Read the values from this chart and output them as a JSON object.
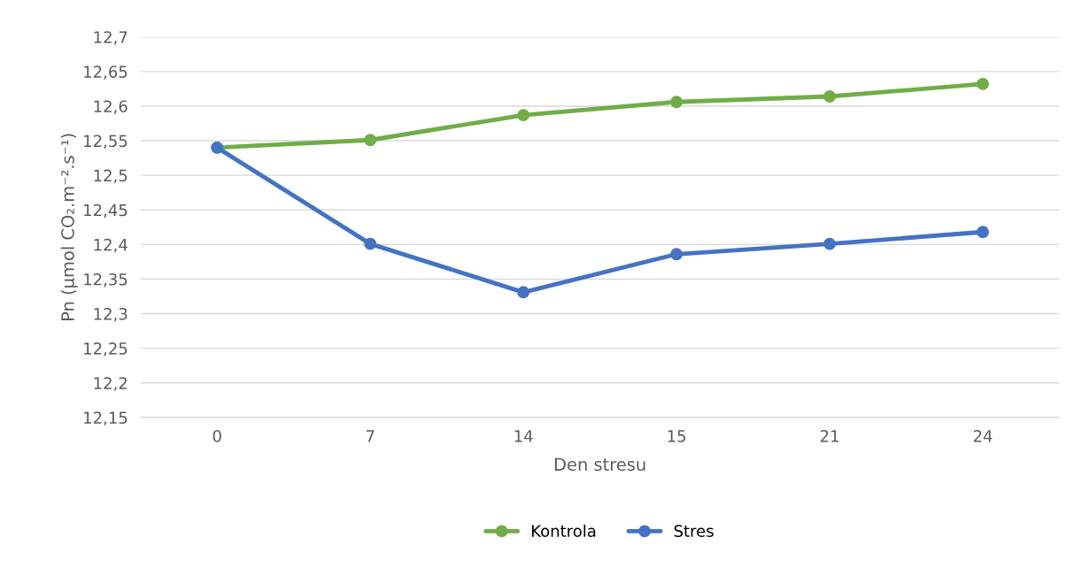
{
  "chart_data": {
    "type": "line",
    "xlabel": "Den stresu",
    "ylabel": "Pn (µmol CO₂.m⁻².s⁻¹)",
    "categories": [
      "0",
      "7",
      "14",
      "15",
      "21",
      "24"
    ],
    "series": [
      {
        "name": "Kontrola",
        "color": "#70ad47",
        "values": [
          12.54,
          12.551,
          12.587,
          12.606,
          12.614,
          12.632
        ]
      },
      {
        "name": "Stres",
        "color": "#4472c4",
        "values": [
          12.54,
          12.401,
          12.331,
          12.386,
          12.401,
          12.418
        ]
      }
    ],
    "ylim": [
      12.15,
      12.7
    ],
    "yticks": [
      {
        "value": 12.15,
        "label": "12,15"
      },
      {
        "value": 12.2,
        "label": "12,2"
      },
      {
        "value": 12.25,
        "label": "12,25"
      },
      {
        "value": 12.3,
        "label": "12,3"
      },
      {
        "value": 12.35,
        "label": "12,35"
      },
      {
        "value": 12.4,
        "label": "12,4"
      },
      {
        "value": 12.45,
        "label": "12,45"
      },
      {
        "value": 12.5,
        "label": "12,5"
      },
      {
        "value": 12.55,
        "label": "12,55"
      },
      {
        "value": 12.6,
        "label": "12,6"
      },
      {
        "value": 12.65,
        "label": "12,65"
      },
      {
        "value": 12.7,
        "label": "12,7"
      }
    ],
    "grid": "y",
    "legend": "bottom",
    "marker": "circle",
    "line_style": "solid"
  }
}
